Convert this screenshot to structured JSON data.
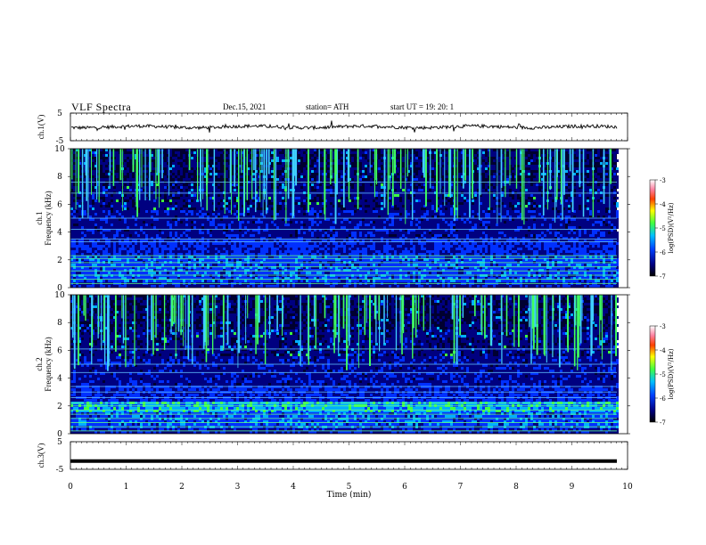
{
  "header": {
    "title": "VLF  Spectra",
    "date": "Dec.15, 2021",
    "station": "station= ATH",
    "start": "start  UT  =    19: 20: 1"
  },
  "chart_data": [
    {
      "type": "line",
      "title": "",
      "ylabel": "ch.1(V)",
      "ylim": [
        -5,
        5
      ],
      "y_ticks": [
        "5",
        "-5"
      ],
      "xlim": [
        0,
        10
      ],
      "series": [
        {
          "description": "noisy trace near 0 V",
          "level": 0
        }
      ]
    },
    {
      "type": "heatmap",
      "ylabel": "ch.1\nFrequency (kHz)",
      "ylim": [
        0,
        10
      ],
      "y_ticks": [
        "0",
        "2",
        "4",
        "6",
        "8",
        "10"
      ],
      "xlim": [
        0,
        9.8
      ],
      "colorbar": {
        "label": "log(PSD)(V²/Hz)",
        "ticks": [
          "-3",
          "-4",
          "-5",
          "-6",
          "-7"
        ],
        "range": [
          -7,
          -3
        ]
      }
    },
    {
      "type": "heatmap",
      "ylabel": "ch.2\nFrequency (kHz)",
      "ylim": [
        0,
        10
      ],
      "y_ticks": [
        "0",
        "2",
        "4",
        "6",
        "8",
        "10"
      ],
      "xlim": [
        0,
        9.8
      ],
      "colorbar": {
        "label": "log(PSD)(V²/Hz)",
        "ticks": [
          "-3",
          "-4",
          "-5",
          "-6",
          "-7"
        ],
        "range": [
          -7,
          -3
        ]
      }
    },
    {
      "type": "line",
      "ylabel": "ch.3(V)",
      "ylim": [
        -5,
        5
      ],
      "y_ticks": [
        "5",
        "-5"
      ],
      "xlim": [
        0,
        10
      ],
      "series": [
        {
          "description": "flat trace",
          "level": -2
        }
      ]
    }
  ],
  "xaxis": {
    "label": "Time  (min)",
    "ticks": [
      "0",
      "1",
      "2",
      "3",
      "4",
      "5",
      "6",
      "7",
      "8",
      "9",
      "10"
    ]
  },
  "colors": {
    "trace": "#000000",
    "background": "#ffffff"
  }
}
